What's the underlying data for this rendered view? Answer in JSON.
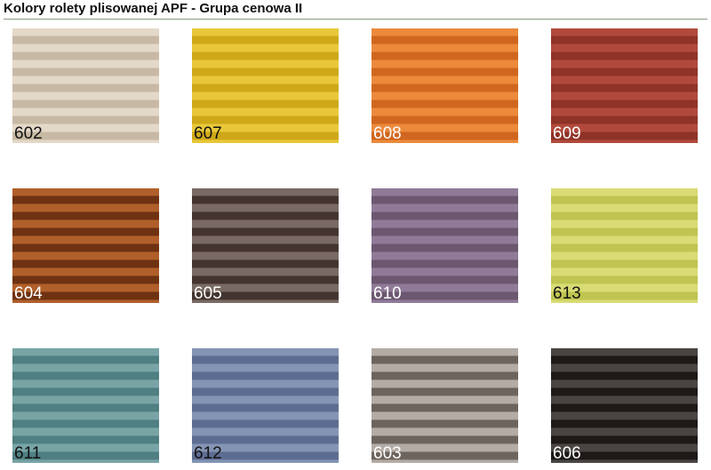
{
  "title": "Kolory rolety plisowanej APF - Grupa cenowa II",
  "swatches": [
    {
      "code": "602",
      "light": "#e4d9c8",
      "dark": "#c7b9a3",
      "label_color": "#111111"
    },
    {
      "code": "607",
      "light": "#e8c83a",
      "dark": "#cfa819",
      "label_color": "#111111"
    },
    {
      "code": "608",
      "light": "#ec8a3c",
      "dark": "#d0661f",
      "label_color": "#ffffff"
    },
    {
      "code": "609",
      "light": "#b14a3c",
      "dark": "#8e3327",
      "label_color": "#ffffff"
    },
    {
      "code": "604",
      "light": "#b0602a",
      "dark": "#6e3212",
      "label_color": "#ffffff"
    },
    {
      "code": "605",
      "light": "#7a6a64",
      "dark": "#433430",
      "label_color": "#ffffff"
    },
    {
      "code": "610",
      "light": "#907a98",
      "dark": "#6b5870",
      "label_color": "#ffffff"
    },
    {
      "code": "613",
      "light": "#d9dc74",
      "dark": "#c0c450",
      "label_color": "#111111"
    },
    {
      "code": "611",
      "light": "#78a4a6",
      "dark": "#4f7f82",
      "label_color": "#111111"
    },
    {
      "code": "612",
      "light": "#8494b4",
      "dark": "#5d6c92",
      "label_color": "#111111"
    },
    {
      "code": "603",
      "light": "#b3aca6",
      "dark": "#6d645e",
      "label_color": "#ffffff"
    },
    {
      "code": "606",
      "light": "#4a4542",
      "dark": "#1c1917",
      "label_color": "#ffffff"
    }
  ]
}
